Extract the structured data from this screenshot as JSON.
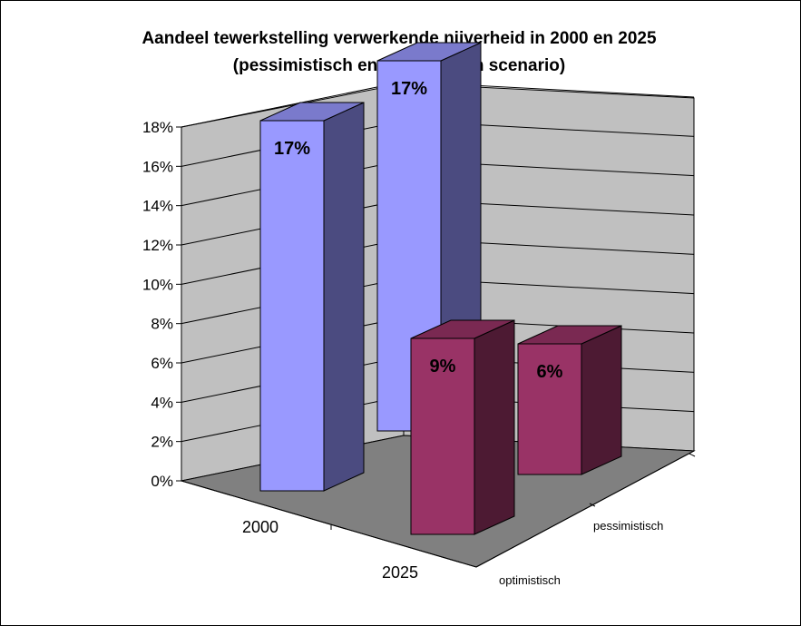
{
  "chart_data": {
    "type": "bar",
    "title": "Aandeel tewerkstelling verwerkende nijverheid in 2000 en 2025",
    "subtitle": "(pessimistisch en optimistisch scenario)",
    "categories": [
      "2000",
      "2025"
    ],
    "series": [
      {
        "name": "optimistisch",
        "values": [
          0.17,
          0.09
        ],
        "labels": [
          "17%",
          "9%"
        ]
      },
      {
        "name": "pessimistisch",
        "values": [
          0.17,
          0.06
        ],
        "labels": [
          "17%",
          "6%"
        ]
      }
    ],
    "y_ticks": [
      "0%",
      "2%",
      "4%",
      "6%",
      "8%",
      "10%",
      "12%",
      "14%",
      "16%",
      "18%"
    ],
    "ylim": [
      0,
      0.18
    ],
    "grid": true,
    "colors": {
      "2000_front": "#9999ff",
      "2000_side": "#4b4b80",
      "2000_top": "#7a7acc",
      "2025_front": "#993366",
      "2025_side": "#4d1a33",
      "2025_top": "#7a2952",
      "wall": "#c0c0c0",
      "floor": "#808080"
    }
  }
}
